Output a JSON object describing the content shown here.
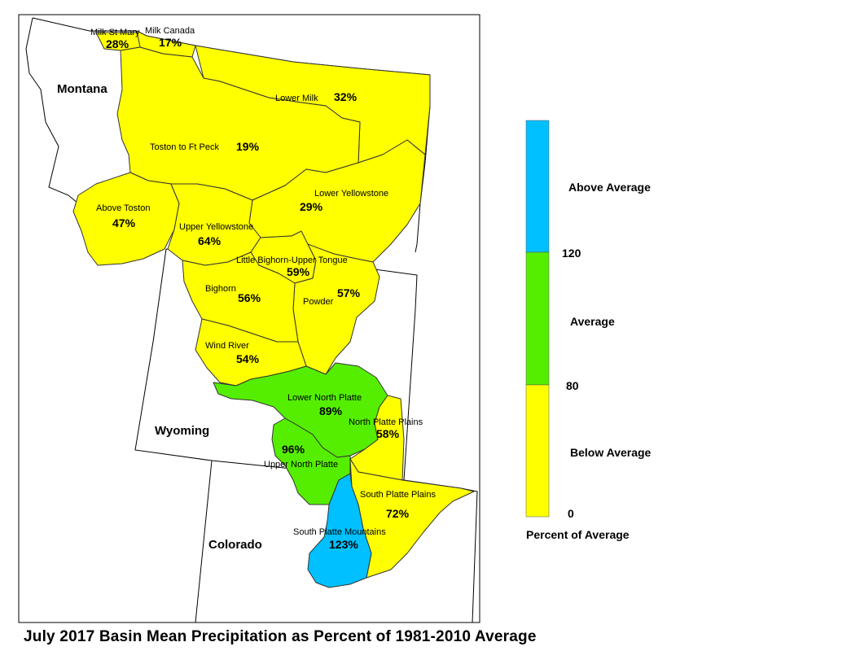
{
  "title": "July 2017 Basin Mean Precipitation as Percent of 1981-2010 Average",
  "colors": {
    "below": "#ffff00",
    "average": "#55ee00",
    "above": "#00c0ff"
  },
  "states": [
    {
      "key": "montana",
      "label": "Montana"
    },
    {
      "key": "wyoming",
      "label": "Wyoming"
    },
    {
      "key": "colorado",
      "label": "Colorado"
    }
  ],
  "basins": [
    {
      "key": "milk-st-mary",
      "name": "Milk St Mary",
      "pct": "28%",
      "value": 28,
      "class": "below"
    },
    {
      "key": "milk-canada",
      "name": "Milk Canada",
      "pct": "17%",
      "value": 17,
      "class": "below"
    },
    {
      "key": "lower-milk",
      "name": "Lower Milk",
      "pct": "32%",
      "value": 32,
      "class": "below"
    },
    {
      "key": "toston-ft-peck",
      "name": "Toston to Ft Peck",
      "pct": "19%",
      "value": 19,
      "class": "below"
    },
    {
      "key": "above-toston",
      "name": "Above Toston",
      "pct": "47%",
      "value": 47,
      "class": "below"
    },
    {
      "key": "lower-yellowstone",
      "name": "Lower Yellowstone",
      "pct": "29%",
      "value": 29,
      "class": "below"
    },
    {
      "key": "upper-yellowstone",
      "name": "Upper Yellowstone",
      "pct": "64%",
      "value": 64,
      "class": "below"
    },
    {
      "key": "little-bighorn",
      "name": "Little Bighorn-Upper Tongue",
      "pct": "59%",
      "value": 59,
      "class": "below"
    },
    {
      "key": "bighorn",
      "name": "Bighorn",
      "pct": "56%",
      "value": 56,
      "class": "below"
    },
    {
      "key": "powder",
      "name": "Powder",
      "pct": "57%",
      "value": 57,
      "class": "below"
    },
    {
      "key": "wind-river",
      "name": "Wind River",
      "pct": "54%",
      "value": 54,
      "class": "below"
    },
    {
      "key": "lower-north-platte",
      "name": "Lower North Platte",
      "pct": "89%",
      "value": 89,
      "class": "average"
    },
    {
      "key": "north-platte-plains",
      "name": "North Platte Plains",
      "pct": "58%",
      "value": 58,
      "class": "below"
    },
    {
      "key": "upper-north-platte",
      "name": "Upper North Platte",
      "pct": "96%",
      "value": 96,
      "class": "average"
    },
    {
      "key": "south-platte-plains",
      "name": "South Platte Plains",
      "pct": "72%",
      "value": 72,
      "class": "below"
    },
    {
      "key": "south-platte-mountains",
      "name": "South Platte Mountains",
      "pct": "123%",
      "value": 123,
      "class": "above"
    }
  ],
  "legend": {
    "title": "Percent of Average",
    "classes": [
      {
        "label": "Above Average",
        "color": "#00c0ff"
      },
      {
        "label": "Average",
        "color": "#55ee00"
      },
      {
        "label": "Below Average",
        "color": "#ffff00"
      }
    ],
    "breaks": [
      "120",
      "80",
      "0"
    ]
  }
}
